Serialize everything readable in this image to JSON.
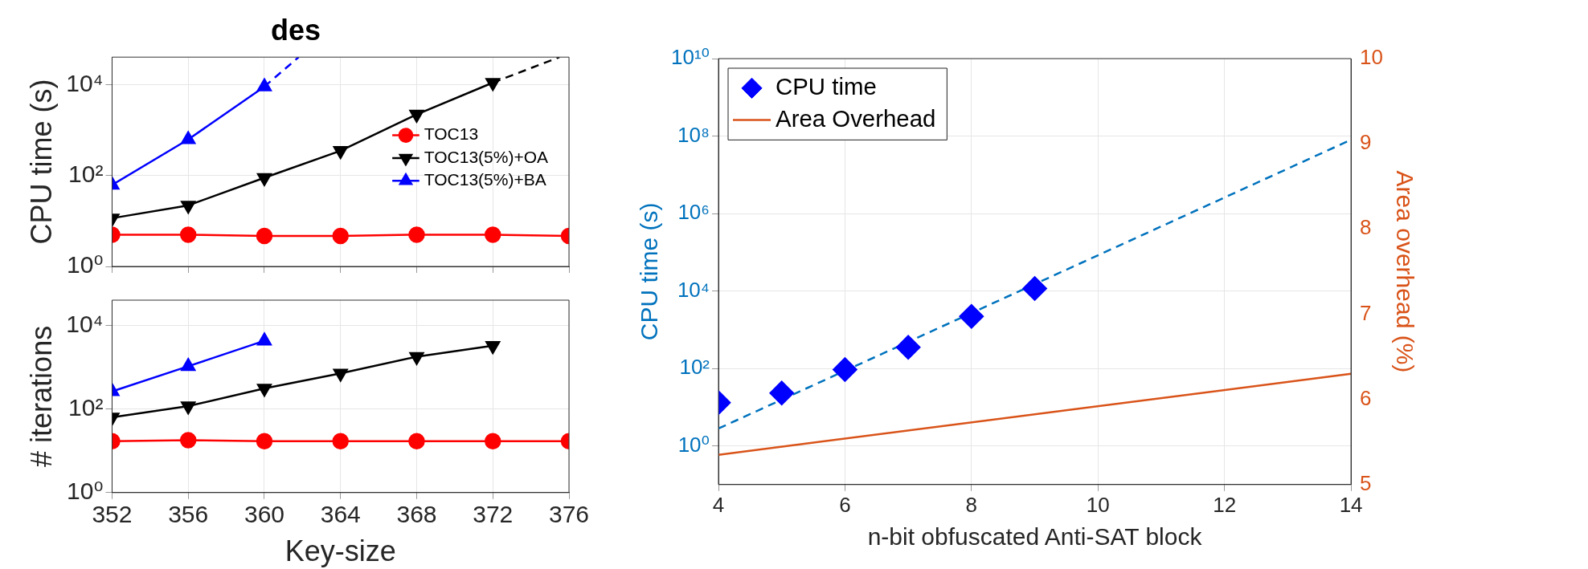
{
  "chart_data": [
    {
      "type": "line",
      "title": "des",
      "ylabel": "CPU time (s)",
      "xlim": [
        352,
        376
      ],
      "xticks": [
        352,
        356,
        360,
        364,
        368,
        372,
        376
      ],
      "ylim": [
        1,
        40000
      ],
      "yticks": [
        {
          "value": 1,
          "label": "10⁰"
        },
        {
          "value": 100,
          "label": "10²"
        },
        {
          "value": 10000,
          "label": "10⁴"
        }
      ],
      "log": "y",
      "grid": true,
      "legend": "right",
      "tick_labels": "y",
      "x": [
        352,
        356,
        360,
        364,
        368,
        372,
        376
      ],
      "series": [
        {
          "name": "TOC13",
          "color": "#ff0000",
          "marker": "circle",
          "values": [
            5,
            5,
            4.7,
            4.7,
            5,
            5,
            4.7
          ]
        },
        {
          "name": "TOC13(5%)+OA",
          "color": "#000000",
          "marker": "triangle-down",
          "x": [
            352,
            356,
            360,
            364,
            368,
            372
          ],
          "values": [
            11.5,
            22,
            89,
            350,
            2200,
            11000
          ]
        },
        {
          "name": "TOC13(5%)+BA",
          "color": "#0000ff",
          "marker": "triangle",
          "x": [
            352,
            356,
            360
          ],
          "values": [
            62,
            620,
            9000
          ]
        },
        {
          "color": "#000000",
          "line_style": "dashed",
          "marker": "none",
          "x": [
            372,
            375.5
          ],
          "values": [
            11000,
            40000
          ]
        },
        {
          "color": "#0000ff",
          "line_style": "dashed",
          "marker": "none",
          "x": [
            360,
            361.8
          ],
          "values": [
            9000,
            40000
          ]
        }
      ]
    },
    {
      "type": "line",
      "xlabel": "Key-size",
      "ylabel": "# iterations",
      "xlim": [
        352,
        376
      ],
      "xticks": [
        352,
        356,
        360,
        364,
        368,
        372,
        376
      ],
      "ylim": [
        1,
        40000
      ],
      "yticks": [
        {
          "value": 1,
          "label": "10⁰"
        },
        {
          "value": 100,
          "label": "10²"
        },
        {
          "value": 10000,
          "label": "10⁴"
        }
      ],
      "log": "y",
      "grid": true,
      "x": [
        352,
        356,
        360,
        364,
        368,
        372,
        376
      ],
      "series": [
        {
          "color": "#ff0000",
          "marker": "circle",
          "values": [
            17,
            18,
            17,
            17,
            17,
            17,
            17
          ]
        },
        {
          "color": "#000000",
          "marker": "triangle-down",
          "x": [
            352,
            356,
            360,
            364,
            368,
            372
          ],
          "values": [
            63,
            117,
            310,
            710,
            1780,
            3250
          ]
        },
        {
          "color": "#0000ff",
          "marker": "triangle",
          "x": [
            352,
            356,
            360
          ],
          "values": [
            263,
            1050,
            4260
          ]
        }
      ]
    },
    {
      "type": "line",
      "xlabel": "n-bit obfuscated Anti-SAT block",
      "ylabel": "CPU time (s)",
      "y2label": "Area overhead (%)",
      "xlim": [
        4,
        14
      ],
      "xticks": [
        4,
        6,
        8,
        10,
        12,
        14
      ],
      "ylim": [
        0.1,
        10000000000
      ],
      "yticks": [
        {
          "value": 1,
          "label": "10⁰"
        },
        {
          "value": 100,
          "label": "10²"
        },
        {
          "value": 10000,
          "label": "10⁴"
        },
        {
          "value": 1000000,
          "label": "10⁶"
        },
        {
          "value": 100000000,
          "label": "10⁸"
        },
        {
          "value": 10000000000,
          "label": "10¹⁰"
        }
      ],
      "y2lim": [
        5,
        10
      ],
      "y2ticks": [
        5,
        6,
        7,
        8,
        9,
        10
      ],
      "log": "y",
      "grid": true,
      "legend": "top left",
      "series": [
        {
          "name": "CPU time",
          "type": "scatter",
          "color": "#0000ff",
          "marker": "diamond",
          "x": [
            4,
            5,
            6,
            7,
            8,
            9
          ],
          "values": [
            13,
            23,
            93,
            350,
            2200,
            11500
          ]
        },
        {
          "name": "Area Overhead",
          "color": "#d95319",
          "axis": "y2",
          "marker": "none",
          "x": [
            4,
            14
          ],
          "values": [
            5.35,
            6.3
          ]
        },
        {
          "color": "#0072bd",
          "line_style": "dashed",
          "marker": "none",
          "x": [
            4,
            14
          ],
          "values": [
            2.8,
            80000000
          ]
        }
      ]
    }
  ]
}
